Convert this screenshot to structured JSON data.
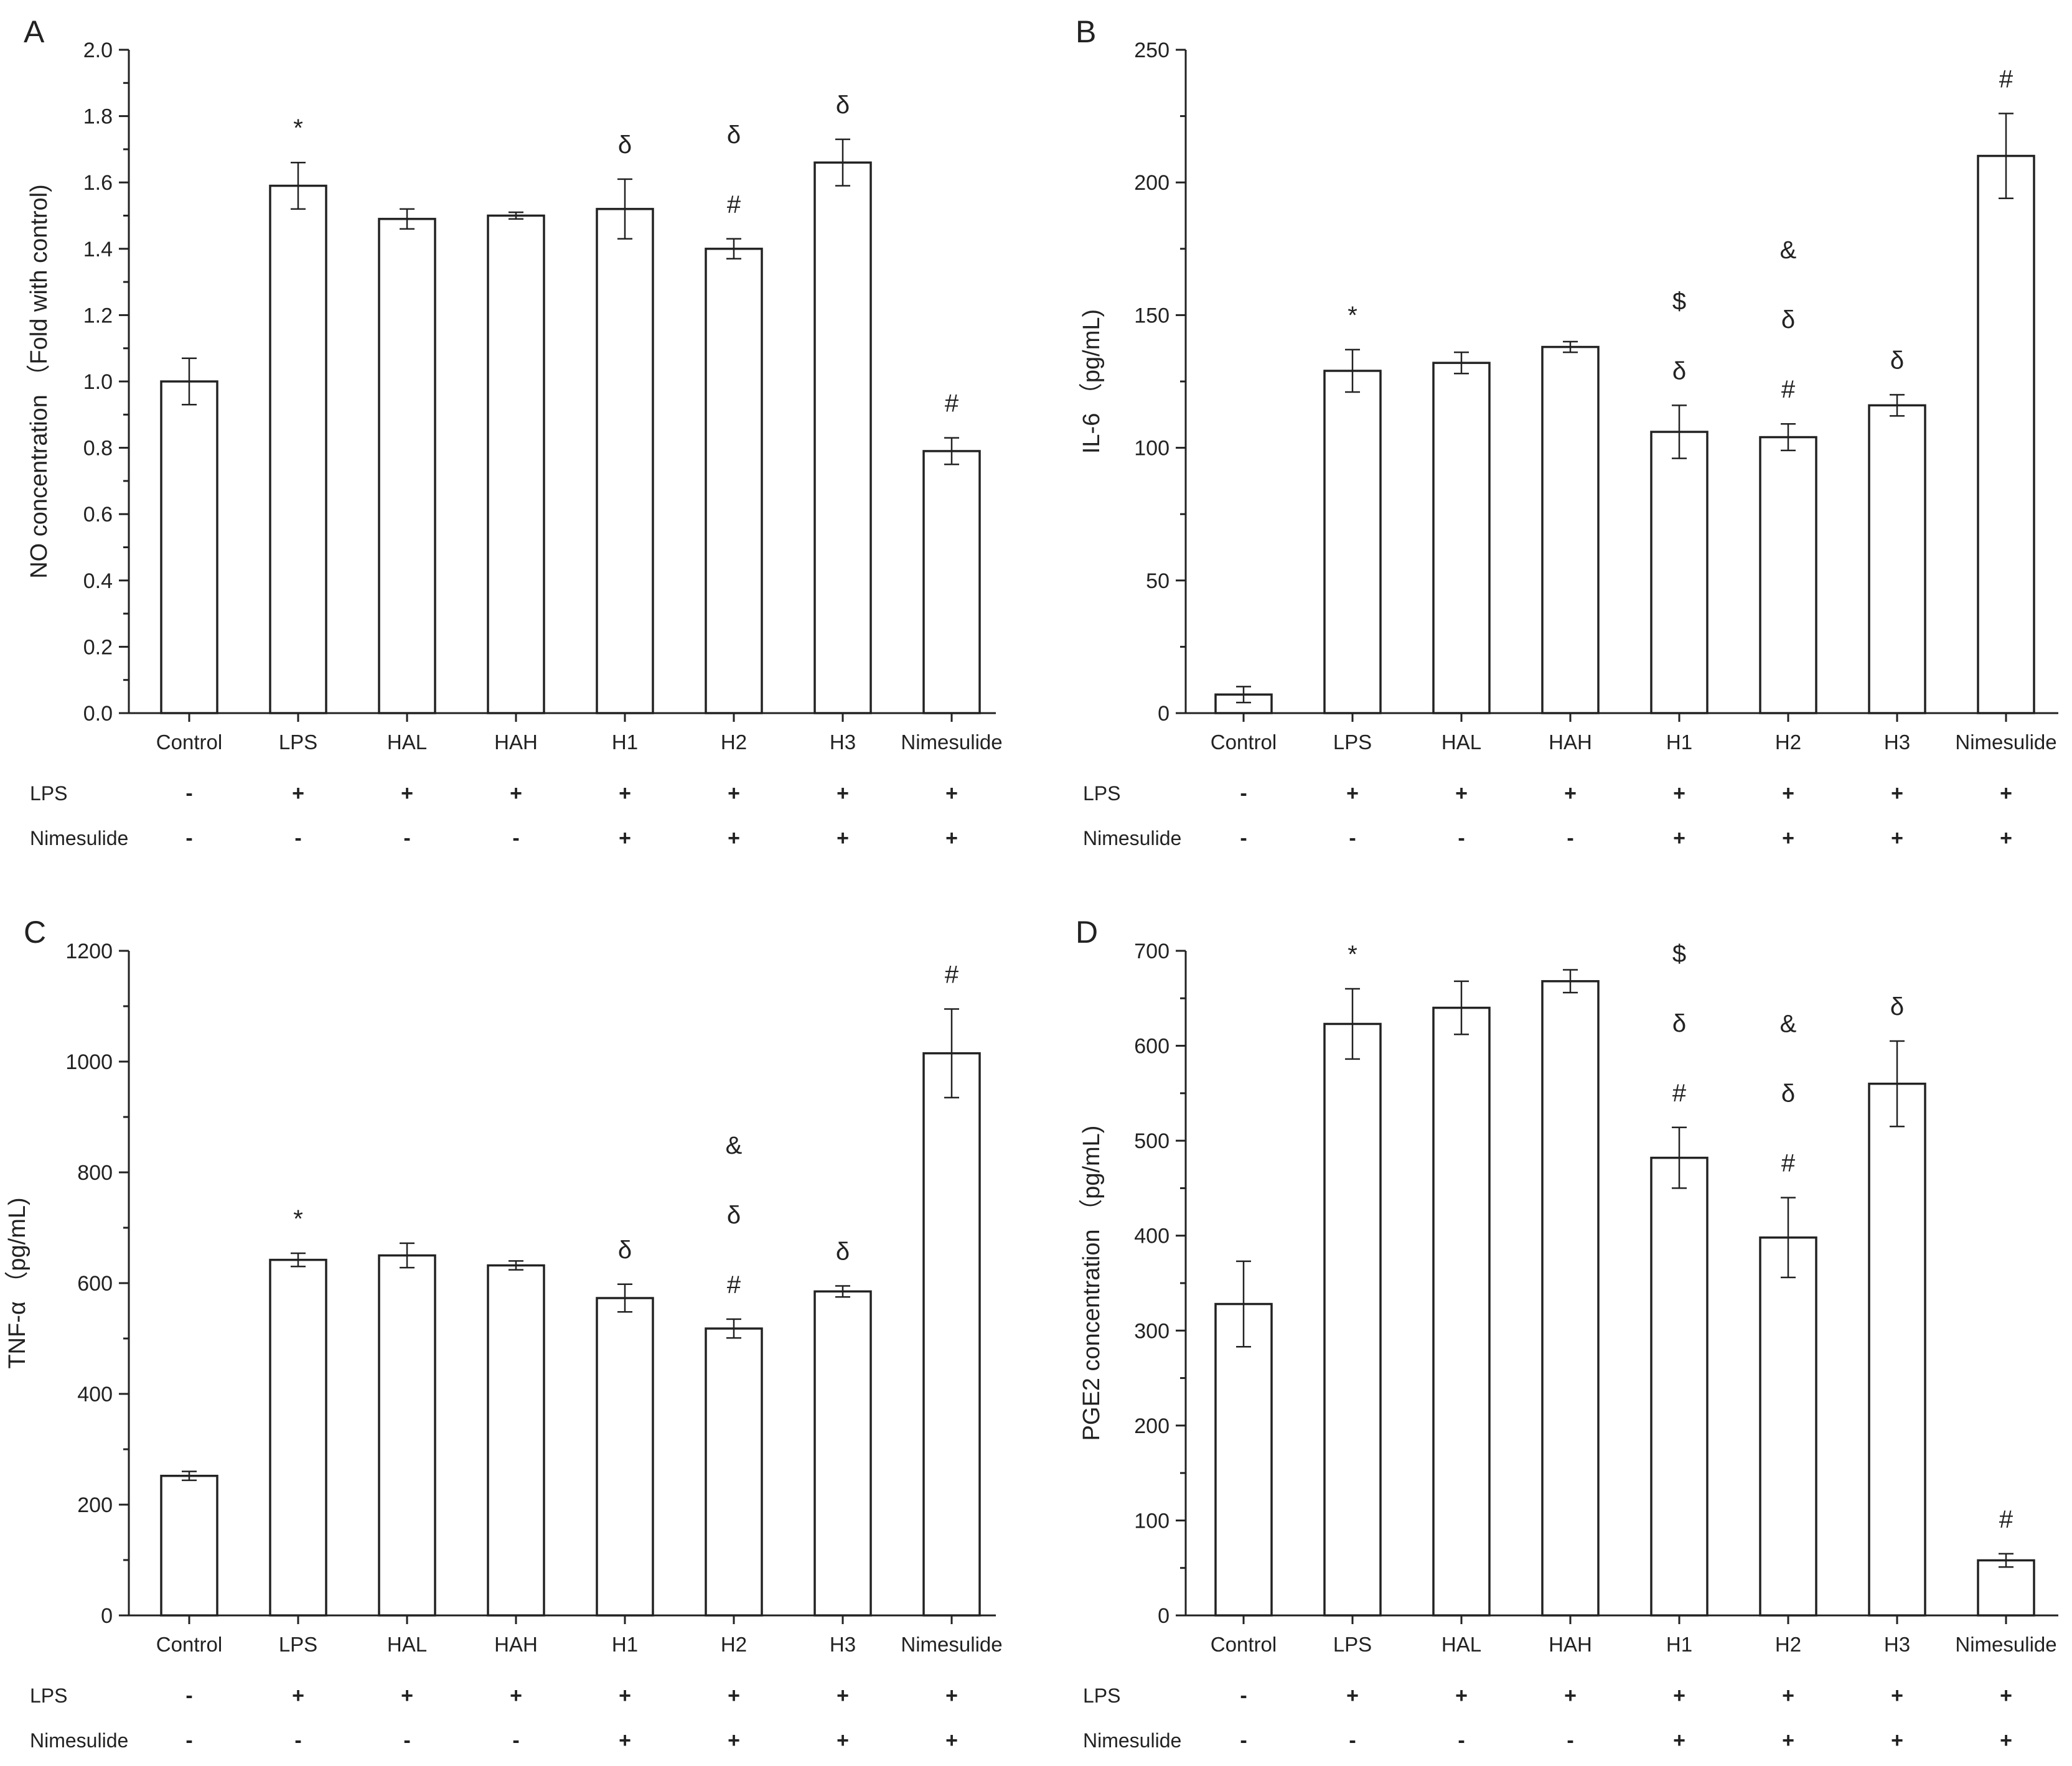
{
  "chart_data": [
    {
      "panel": "A",
      "type": "bar",
      "ylabel": "NO concentration （Fold with control)",
      "ylim": [
        0,
        2.0
      ],
      "yticks": [
        "0.0",
        "0.2",
        "0.4",
        "0.6",
        "0.8",
        "1.0",
        "1.2",
        "1.4",
        "1.6",
        "1.8",
        "2.0"
      ],
      "categories": [
        "Control",
        "LPS",
        "HAL",
        "HAH",
        "H1",
        "H2",
        "H3",
        "Nimesulide"
      ],
      "values": [
        1.0,
        1.59,
        1.49,
        1.5,
        1.52,
        1.4,
        1.66,
        0.79
      ],
      "errors": [
        0.07,
        0.07,
        0.03,
        0.01,
        0.09,
        0.03,
        0.07,
        0.04
      ],
      "annotations": [
        [],
        [
          "*"
        ],
        [],
        [],
        [
          "δ"
        ],
        [
          "#",
          "δ"
        ],
        [
          "δ"
        ],
        [
          "#"
        ]
      ],
      "treatment_rows": [
        {
          "label": "LPS",
          "values": [
            "-",
            "+",
            "+",
            "+",
            "+",
            "+",
            "+",
            "+"
          ]
        },
        {
          "label": "Nimesulide",
          "values": [
            "-",
            "-",
            "-",
            "-",
            "+",
            "+",
            "+",
            "+"
          ]
        }
      ]
    },
    {
      "panel": "B",
      "type": "bar",
      "ylabel": "IL-6 （pg/mL)",
      "ylim": [
        0,
        250
      ],
      "yticks": [
        "0",
        "50",
        "100",
        "150",
        "200",
        "250"
      ],
      "categories": [
        "Control",
        "LPS",
        "HAL",
        "HAH",
        "H1",
        "H2",
        "H3",
        "Nimesulide"
      ],
      "values": [
        7,
        129,
        132,
        138,
        106,
        104,
        116,
        210
      ],
      "errors": [
        3,
        8,
        4,
        2,
        10,
        5,
        4,
        16
      ],
      "annotations": [
        [],
        [
          "*"
        ],
        [],
        [],
        [
          "δ",
          "$"
        ],
        [
          "#",
          "δ",
          "&"
        ],
        [
          "δ"
        ],
        [
          "#"
        ]
      ],
      "treatment_rows": [
        {
          "label": "LPS",
          "values": [
            "-",
            "+",
            "+",
            "+",
            "+",
            "+",
            "+",
            "+"
          ]
        },
        {
          "label": "Nimesulide",
          "values": [
            "-",
            "-",
            "-",
            "-",
            "+",
            "+",
            "+",
            "+"
          ]
        }
      ]
    },
    {
      "panel": "C",
      "type": "bar",
      "ylabel": "TNF-α （pg/mL)",
      "ylim": [
        0,
        1200
      ],
      "yticks": [
        "0",
        "200",
        "400",
        "600",
        "800",
        "1000",
        "1200"
      ],
      "categories": [
        "Control",
        "LPS",
        "HAL",
        "HAH",
        "H1",
        "H2",
        "H3",
        "Nimesulide"
      ],
      "values": [
        252,
        642,
        650,
        632,
        573,
        518,
        585,
        1015
      ],
      "errors": [
        8,
        12,
        22,
        8,
        25,
        17,
        10,
        80
      ],
      "annotations": [
        [],
        [
          "*"
        ],
        [],
        [],
        [
          "δ"
        ],
        [
          "#",
          "δ",
          "&"
        ],
        [
          "δ"
        ],
        [
          "#"
        ]
      ],
      "treatment_rows": [
        {
          "label": "LPS",
          "values": [
            "-",
            "+",
            "+",
            "+",
            "+",
            "+",
            "+",
            "+"
          ]
        },
        {
          "label": "Nimesulide",
          "values": [
            "-",
            "-",
            "-",
            "-",
            "+",
            "+",
            "+",
            "+"
          ]
        }
      ]
    },
    {
      "panel": "D",
      "type": "bar",
      "ylabel": "PGE2 concentration （pg/mL)",
      "ylim": [
        0,
        700
      ],
      "yticks": [
        "0",
        "100",
        "200",
        "300",
        "400",
        "500",
        "600",
        "700"
      ],
      "categories": [
        "Control",
        "LPS",
        "HAL",
        "HAH",
        "H1",
        "H2",
        "H3",
        "Nimesulide"
      ],
      "values": [
        328,
        623,
        640,
        668,
        482,
        398,
        560,
        58
      ],
      "errors": [
        45,
        37,
        28,
        12,
        32,
        42,
        45,
        7
      ],
      "annotations": [
        [],
        [
          "*"
        ],
        [],
        [],
        [
          "#",
          "δ",
          "$"
        ],
        [
          "#",
          "δ",
          "&"
        ],
        [
          "δ"
        ],
        [
          "#"
        ]
      ],
      "treatment_rows": [
        {
          "label": "LPS",
          "values": [
            "-",
            "+",
            "+",
            "+",
            "+",
            "+",
            "+",
            "+"
          ]
        },
        {
          "label": "Nimesulide",
          "values": [
            "-",
            "-",
            "-",
            "-",
            "+",
            "+",
            "+",
            "+"
          ]
        }
      ]
    }
  ]
}
